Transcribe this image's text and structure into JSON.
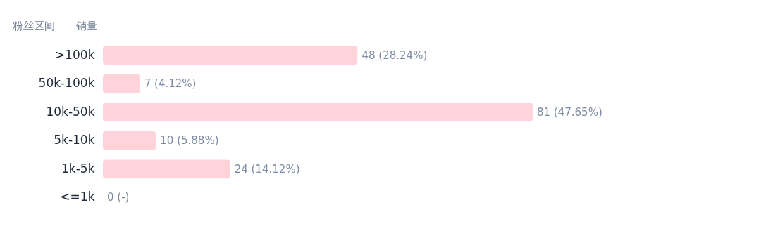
{
  "chart_data": {
    "type": "bar",
    "orientation": "horizontal",
    "ylabel": "粉丝区间",
    "xlabel": "销量",
    "categories": [
      ">100k",
      "50k-100k",
      "10k-50k",
      "5k-10k",
      "1k-5k",
      "<=1k"
    ],
    "values": [
      48,
      7,
      81,
      10,
      24,
      0
    ],
    "color": "#ffd3da",
    "value_labels": [
      "48 (28.24%)",
      "7 (4.12%)",
      "81 (47.65%)",
      "10 (5.88%)",
      "24 (14.12%)",
      "0 (-)"
    ]
  }
}
